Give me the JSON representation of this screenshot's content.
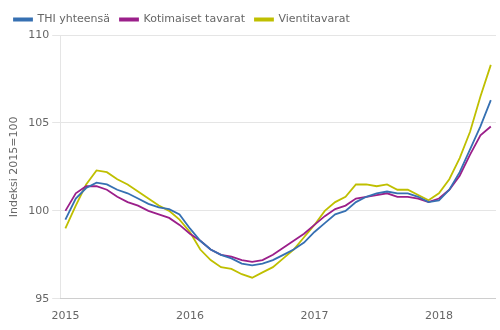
{
  "chart_data": {
    "type": "line",
    "ylabel": "Indeksi 2015=100",
    "categories": [
      "2015",
      null,
      null,
      null,
      null,
      null,
      null,
      null,
      null,
      null,
      null,
      null,
      "2016",
      null,
      null,
      null,
      null,
      null,
      null,
      null,
      null,
      null,
      null,
      null,
      "2017",
      null,
      null,
      null,
      null,
      null,
      null,
      null,
      null,
      null,
      null,
      null,
      "2018",
      null,
      null,
      null,
      null,
      null
    ],
    "series": [
      {
        "name": "THI yhteensä",
        "color": "#3670b2",
        "values": [
          99.5,
          100.7,
          101.3,
          101.6,
          101.5,
          101.2,
          101.0,
          100.7,
          100.4,
          100.2,
          100.1,
          99.8,
          99.0,
          98.3,
          97.8,
          97.5,
          97.3,
          97.0,
          96.9,
          97.0,
          97.2,
          97.5,
          97.8,
          98.2,
          98.8,
          99.3,
          99.8,
          100.0,
          100.5,
          100.8,
          101.0,
          101.1,
          101.0,
          101.0,
          100.8,
          100.5,
          100.6,
          101.2,
          102.2,
          103.5,
          104.8,
          106.3
        ]
      },
      {
        "name": "Kotimaiset tavarat",
        "color": "#9b1f8a",
        "values": [
          100.0,
          101.0,
          101.4,
          101.4,
          101.2,
          100.8,
          100.5,
          100.3,
          100.0,
          99.8,
          99.6,
          99.2,
          98.7,
          98.3,
          97.8,
          97.5,
          97.4,
          97.2,
          97.1,
          97.2,
          97.5,
          97.9,
          98.3,
          98.7,
          99.2,
          99.7,
          100.1,
          100.3,
          100.7,
          100.8,
          100.9,
          101.0,
          100.8,
          100.8,
          100.7,
          100.5,
          100.7,
          101.2,
          102.0,
          103.2,
          104.3,
          104.8
        ]
      },
      {
        "name": "Vientitavarat",
        "color": "#bfbf00",
        "values": [
          99.0,
          100.3,
          101.5,
          102.3,
          102.2,
          101.8,
          101.5,
          101.1,
          100.7,
          100.3,
          100.0,
          99.5,
          98.8,
          97.8,
          97.2,
          96.8,
          96.7,
          96.4,
          96.2,
          96.5,
          96.8,
          97.3,
          97.8,
          98.5,
          99.2,
          100.0,
          100.5,
          100.8,
          101.5,
          101.5,
          101.4,
          101.5,
          101.2,
          101.2,
          100.9,
          100.6,
          101.0,
          101.8,
          103.0,
          104.5,
          106.5,
          108.3
        ]
      }
    ],
    "ylim": [
      95,
      110
    ],
    "yticks": [
      95,
      100,
      105,
      110
    ],
    "grid": "y",
    "legend": "upper left",
    "line_style": "solid"
  }
}
